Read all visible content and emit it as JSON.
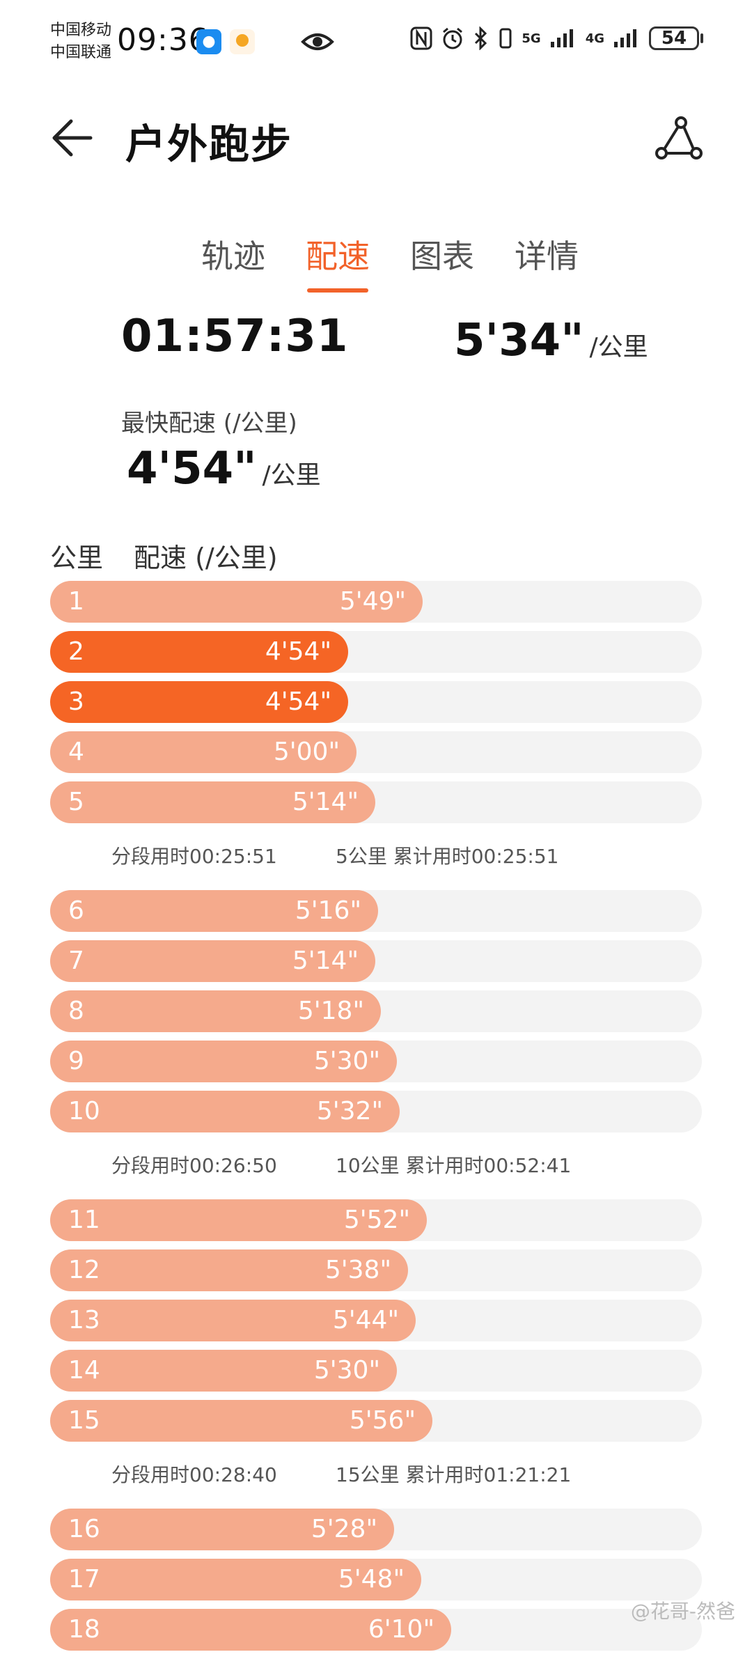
{
  "status": {
    "carrier_1": "中国移动",
    "carrier_2": "中国联通",
    "time": "09:36",
    "signal_5g": "5G",
    "signal_4g": "4G",
    "battery": "54"
  },
  "header": {
    "title": "户外跑步"
  },
  "tabs": [
    {
      "label": "轨迹",
      "active": false
    },
    {
      "label": "配速",
      "active": true
    },
    {
      "label": "图表",
      "active": false
    },
    {
      "label": "详情",
      "active": false
    }
  ],
  "summary": {
    "total_time": "01:57:31",
    "avg_pace": "5'34\"",
    "avg_unit": "/公里",
    "fastest_label": "最快配速 (/公里)",
    "fastest_pace": "4'54\"",
    "fastest_unit": "/公里"
  },
  "table": {
    "col_km": "公里",
    "col_pace": "配速 (/公里)"
  },
  "colors": {
    "accent": "#f2622a",
    "bar": "#f5aa8c",
    "bar_fast": "#f56525",
    "track": "#f3f3f3"
  },
  "chart_data": {
    "type": "bar",
    "categories": [
      "1",
      "2",
      "3",
      "4",
      "5",
      "6",
      "7",
      "8",
      "9",
      "10",
      "11",
      "12",
      "13",
      "14",
      "15",
      "16",
      "17",
      "18"
    ],
    "values": [
      "5'49\"",
      "4'54\"",
      "4'54\"",
      "5'00\"",
      "5'14\"",
      "5'16\"",
      "5'14\"",
      "5'18\"",
      "5'30\"",
      "5'32\"",
      "5'52\"",
      "5'38\"",
      "5'44\"",
      "5'30\"",
      "5'56\"",
      "5'28\"",
      "5'48\"",
      "6'10\""
    ],
    "fastest_km": [
      "2",
      "3"
    ],
    "xlabel": "公里",
    "ylabel": "配速 (/公里)"
  },
  "splits": [
    {
      "after_km": 5,
      "segment": "分段用时00:25:51",
      "cumulative": "5公里 累计用时00:25:51"
    },
    {
      "after_km": 10,
      "segment": "分段用时00:26:50",
      "cumulative": "10公里 累计用时00:52:41"
    },
    {
      "after_km": 15,
      "segment": "分段用时00:28:40",
      "cumulative": "15公里 累计用时01:21:21"
    }
  ],
  "watermark": "@花哥-然爸"
}
